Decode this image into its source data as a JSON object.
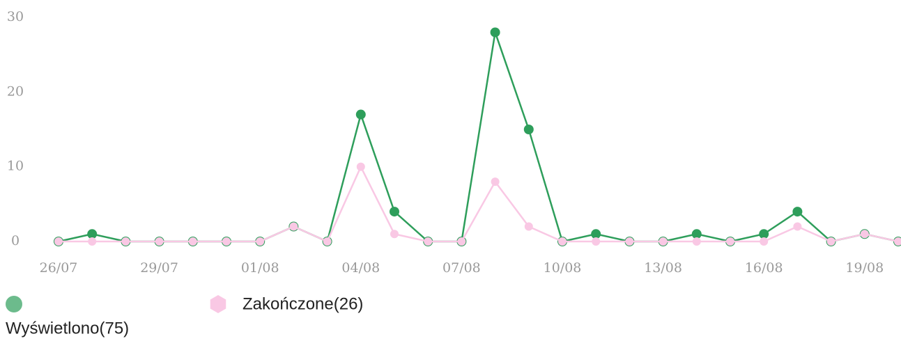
{
  "chart_data": {
    "type": "line",
    "categories": [
      "26/07",
      null,
      null,
      "29/07",
      null,
      null,
      "01/08",
      null,
      null,
      "04/08",
      null,
      null,
      "07/08",
      null,
      null,
      "10/08",
      null,
      null,
      "13/08",
      null,
      null,
      "16/08",
      null,
      null,
      "19/08",
      null
    ],
    "series": [
      {
        "name": "Wyświetlono(75)",
        "color": "#2e9e5b",
        "values": [
          0,
          1,
          0,
          0,
          0,
          0,
          0,
          2,
          0,
          17,
          4,
          0,
          0,
          28,
          15,
          0,
          1,
          0,
          0,
          1,
          0,
          1,
          4,
          0,
          1,
          0
        ]
      },
      {
        "name": "Zakończone(26)",
        "color": "#f9c8e4",
        "values": [
          0,
          0,
          0,
          0,
          0,
          0,
          0,
          2,
          0,
          10,
          1,
          0,
          0,
          8,
          2,
          0,
          0,
          0,
          0,
          0,
          0,
          0,
          2,
          0,
          1,
          0
        ]
      }
    ],
    "ylim": [
      0,
      30
    ],
    "yticks": [
      0,
      10,
      20,
      30
    ]
  }
}
